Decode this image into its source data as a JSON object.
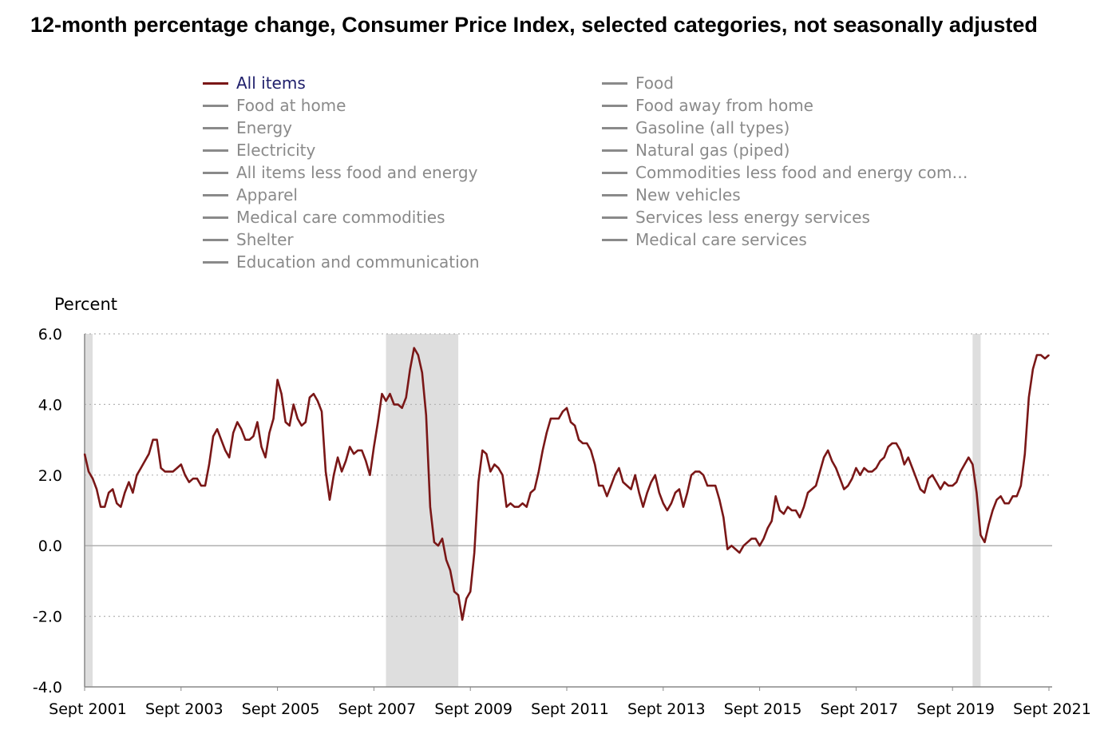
{
  "title": "12-month percentage change, Consumer Price Index, selected categories, not seasonally adjusted",
  "legend": {
    "left": [
      "All items",
      "Food at home",
      "Energy",
      "Electricity",
      "All items less food and energy",
      "Apparel",
      "Medical care commodities",
      "Shelter",
      "Education and communication"
    ],
    "right": [
      "Food",
      "Food away from home",
      "Gasoline (all types)",
      "Natural gas (piped)",
      "Commodities less food and energy com…",
      "New vehicles",
      "Services less energy services",
      "Medical care services"
    ]
  },
  "colors": {
    "series": "#7a1717",
    "legend_inactive": "#8a8a8a",
    "legend_active_text": "#1f1f6b",
    "recession": "#dedede",
    "grid": "#b5b5b5"
  },
  "chart_data": {
    "type": "line",
    "ylabel": "Percent",
    "ylim": [
      -4.0,
      6.0
    ],
    "yticks": [
      "6.0",
      "4.0",
      "2.0",
      "0.0",
      "-2.0",
      "-4.0"
    ],
    "xticks": [
      "Sept 2001",
      "Sept 2003",
      "Sept 2005",
      "Sept 2007",
      "Sept 2009",
      "Sept 2011",
      "Sept 2013",
      "Sept 2015",
      "Sept 2017",
      "Sept 2019",
      "Sept 2021"
    ],
    "x_start": "Sept 2001",
    "x_end": "Sept 2021",
    "grid": "horizontal dotted",
    "recessions": [
      {
        "start": "Mar 2001",
        "end": "Nov 2001"
      },
      {
        "start": "Dec 2007",
        "end": "Jun 2009"
      },
      {
        "start": "Feb 2020",
        "end": "Apr 2020"
      }
    ],
    "series": [
      {
        "name": "All items",
        "start": "Sept 2001",
        "frequency": "monthly",
        "values": [
          2.6,
          2.1,
          1.9,
          1.6,
          1.1,
          1.1,
          1.5,
          1.6,
          1.2,
          1.1,
          1.5,
          1.8,
          1.5,
          2.0,
          2.2,
          2.4,
          2.6,
          3.0,
          3.0,
          2.2,
          2.1,
          2.1,
          2.1,
          2.2,
          2.3,
          2.0,
          1.8,
          1.9,
          1.9,
          1.7,
          1.7,
          2.3,
          3.1,
          3.3,
          3.0,
          2.7,
          2.5,
          3.2,
          3.5,
          3.3,
          3.0,
          3.0,
          3.1,
          3.5,
          2.8,
          2.5,
          3.2,
          3.6,
          4.7,
          4.3,
          3.5,
          3.4,
          4.0,
          3.6,
          3.4,
          3.5,
          4.2,
          4.3,
          4.1,
          3.8,
          2.1,
          1.3,
          2.0,
          2.5,
          2.1,
          2.4,
          2.8,
          2.6,
          2.7,
          2.7,
          2.4,
          2.0,
          2.8,
          3.5,
          4.3,
          4.1,
          4.3,
          4.0,
          4.0,
          3.9,
          4.2,
          5.0,
          5.6,
          5.4,
          4.9,
          3.7,
          1.1,
          0.1,
          0.0,
          0.2,
          -0.4,
          -0.7,
          -1.3,
          -1.4,
          -2.1,
          -1.5,
          -1.3,
          -0.2,
          1.8,
          2.7,
          2.6,
          2.1,
          2.3,
          2.2,
          2.0,
          1.1,
          1.2,
          1.1,
          1.1,
          1.2,
          1.1,
          1.5,
          1.6,
          2.1,
          2.7,
          3.2,
          3.6,
          3.6,
          3.6,
          3.8,
          3.9,
          3.5,
          3.4,
          3.0,
          2.9,
          2.9,
          2.7,
          2.3,
          1.7,
          1.7,
          1.4,
          1.7,
          2.0,
          2.2,
          1.8,
          1.7,
          1.6,
          2.0,
          1.5,
          1.1,
          1.5,
          1.8,
          2.0,
          1.5,
          1.2,
          1.0,
          1.2,
          1.5,
          1.6,
          1.1,
          1.5,
          2.0,
          2.1,
          2.1,
          2.0,
          1.7,
          1.7,
          1.7,
          1.3,
          0.8,
          -0.1,
          0.0,
          -0.1,
          -0.2,
          0.0,
          0.1,
          0.2,
          0.2,
          0.0,
          0.2,
          0.5,
          0.7,
          1.4,
          1.0,
          0.9,
          1.1,
          1.0,
          1.0,
          0.8,
          1.1,
          1.5,
          1.6,
          1.7,
          2.1,
          2.5,
          2.7,
          2.4,
          2.2,
          1.9,
          1.6,
          1.7,
          1.9,
          2.2,
          2.0,
          2.2,
          2.1,
          2.1,
          2.2,
          2.4,
          2.5,
          2.8,
          2.9,
          2.9,
          2.7,
          2.3,
          2.5,
          2.2,
          1.9,
          1.6,
          1.5,
          1.9,
          2.0,
          1.8,
          1.6,
          1.8,
          1.7,
          1.7,
          1.8,
          2.1,
          2.3,
          2.5,
          2.3,
          1.5,
          0.3,
          0.1,
          0.6,
          1.0,
          1.3,
          1.4,
          1.2,
          1.2,
          1.4,
          1.4,
          1.7,
          2.6,
          4.2,
          5.0,
          5.4,
          5.4,
          5.3,
          5.4
        ]
      }
    ]
  }
}
